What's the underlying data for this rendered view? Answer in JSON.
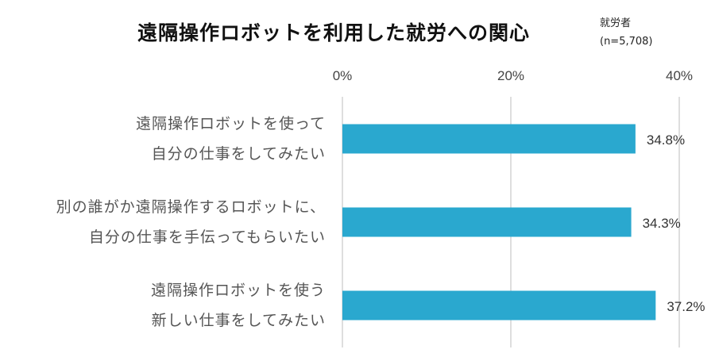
{
  "chart_data": {
    "type": "bar",
    "orientation": "horizontal",
    "title": "遠隔操作ロボットを利用した就労への関心",
    "note": [
      "就労者",
      "(n=5,708)"
    ],
    "categories": [
      [
        "遠隔操作ロボットを使って",
        "自分の仕事をしてみたい"
      ],
      [
        "別の誰がか遠隔操作するロボットに、",
        "自分の仕事を手伝ってもらいたい"
      ],
      [
        "遠隔操作ロボットを使う",
        "新しい仕事をしてみたい"
      ]
    ],
    "values": [
      34.8,
      34.3,
      37.2
    ],
    "data_labels": [
      "34.8%",
      "34.3%",
      "37.2%"
    ],
    "xlim": [
      0,
      40
    ],
    "xticks": [
      0,
      20,
      40
    ],
    "tick_labels": [
      "0%",
      "20%",
      "40%"
    ],
    "bar_color": "#2aa8cf",
    "grid": true
  }
}
